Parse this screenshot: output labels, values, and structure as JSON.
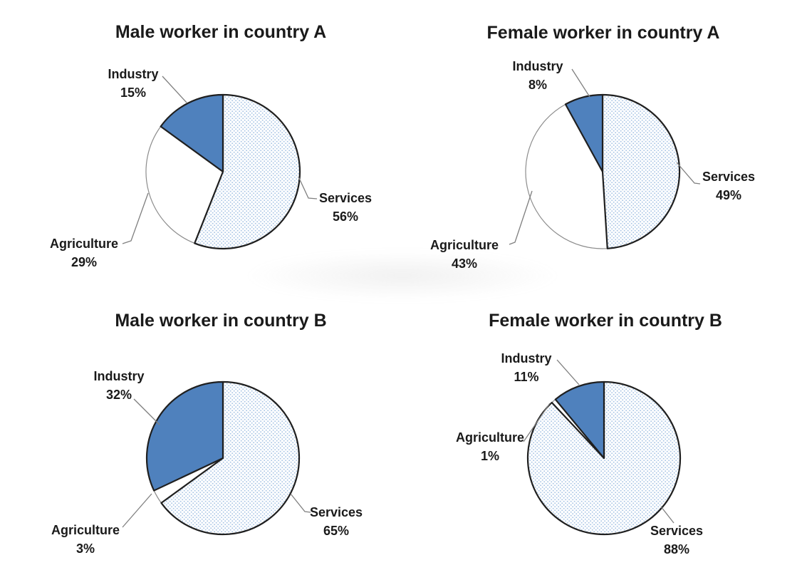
{
  "chart_data": [
    {
      "type": "pie",
      "title": "Male worker in country A",
      "categories": [
        "Services",
        "Agriculture",
        "Industry"
      ],
      "values": [
        56,
        29,
        15
      ],
      "value_labels": [
        "56%",
        "29%",
        "15%"
      ],
      "unit": "percent",
      "start_angle_deg": 0,
      "direction": "clockwise",
      "slice_fills": [
        "blue-dot-pattern",
        "white",
        "solid-blue"
      ],
      "legend": "none (callout labels with leader lines)"
    },
    {
      "type": "pie",
      "title": "Female worker in country A",
      "categories": [
        "Services",
        "Agriculture",
        "Industry"
      ],
      "values": [
        49,
        43,
        8
      ],
      "value_labels": [
        "49%",
        "43%",
        "8%"
      ],
      "unit": "percent",
      "start_angle_deg": 0,
      "direction": "clockwise",
      "slice_fills": [
        "blue-dot-pattern",
        "white",
        "solid-blue"
      ],
      "legend": "none (callout labels with leader lines)"
    },
    {
      "type": "pie",
      "title": "Male worker in country B",
      "categories": [
        "Services",
        "Agriculture",
        "Industry"
      ],
      "values": [
        65,
        3,
        32
      ],
      "value_labels": [
        "65%",
        "3%",
        "32%"
      ],
      "unit": "percent",
      "start_angle_deg": 0,
      "direction": "clockwise",
      "slice_fills": [
        "blue-dot-pattern",
        "white",
        "solid-blue"
      ],
      "legend": "none (callout labels with leader lines)"
    },
    {
      "type": "pie",
      "title": "Female worker in country B",
      "categories": [
        "Services",
        "Agriculture",
        "Industry"
      ],
      "values": [
        88,
        1,
        11
      ],
      "value_labels": [
        "88%",
        "1%",
        "11%"
      ],
      "unit": "percent",
      "start_angle_deg": 0,
      "direction": "clockwise",
      "slice_fills": [
        "blue-dot-pattern",
        "white",
        "solid-blue"
      ],
      "legend": "none (callout labels with leader lines)"
    }
  ],
  "palette": {
    "industry_fill": "#4f81bd",
    "services_dot_color": "#a9c5e5",
    "services_background": "#ffffff",
    "agriculture_fill": "#ffffff",
    "outline_dark": "#1f1f1f",
    "outline_light": "#8c8c8c",
    "leader_line": "#7f7f7f",
    "text": "#1a1a1a",
    "background": "#ffffff"
  }
}
